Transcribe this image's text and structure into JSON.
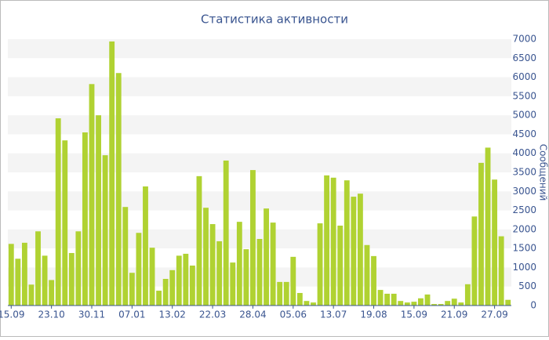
{
  "chart_data": {
    "type": "bar",
    "title": "Статистика активности",
    "y_label": "Сообщений",
    "color": "#b0d232",
    "categories": [
      "15.09",
      null,
      null,
      null,
      null,
      null,
      "23.10",
      null,
      null,
      null,
      null,
      null,
      "30.11",
      null,
      null,
      null,
      null,
      null,
      "07.01",
      null,
      null,
      null,
      null,
      null,
      "13.02",
      null,
      null,
      null,
      null,
      null,
      "22.03",
      null,
      null,
      null,
      null,
      null,
      "28.04",
      null,
      null,
      null,
      null,
      null,
      "05.06",
      null,
      null,
      null,
      null,
      null,
      "13.07",
      null,
      null,
      null,
      null,
      null,
      "19.08",
      null,
      null,
      null,
      null,
      null,
      "15.09",
      null,
      null,
      null,
      null,
      null,
      "21.09",
      null,
      null,
      null,
      null,
      null,
      "27.09",
      null,
      null
    ],
    "values": [
      1620,
      1230,
      1650,
      550,
      1950,
      1310,
      670,
      4920,
      4340,
      1380,
      1950,
      4550,
      5820,
      5000,
      3950,
      6940,
      6110,
      2590,
      860,
      1910,
      3130,
      1520,
      390,
      700,
      930,
      1310,
      1360,
      1050,
      3400,
      2570,
      2140,
      1690,
      3810,
      1130,
      2200,
      1480,
      3560,
      1750,
      2550,
      2180,
      620,
      620,
      1280,
      330,
      120,
      80,
      2160,
      3420,
      3360,
      2100,
      3290,
      2860,
      2940,
      1590,
      1300,
      410,
      310,
      310,
      120,
      80,
      100,
      190,
      290,
      40,
      40,
      120,
      180,
      80,
      560,
      2340,
      3750,
      4150,
      3310,
      1820,
      150
    ],
    "ylim": [
      0,
      7000
    ],
    "yticks": [
      0,
      500,
      1000,
      1500,
      2000,
      2500,
      3000,
      3500,
      4000,
      4500,
      5000,
      5500,
      6000,
      6500,
      7000
    ],
    "grid": true
  }
}
